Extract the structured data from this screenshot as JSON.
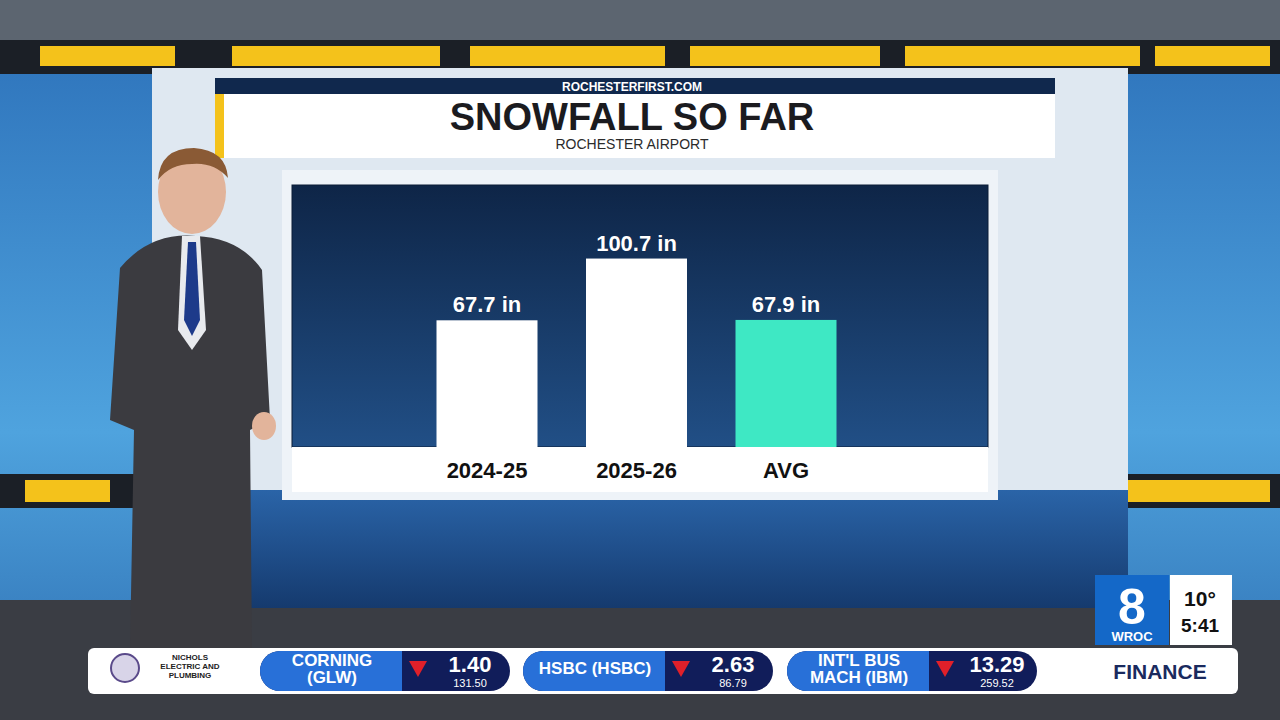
{
  "chart_data": {
    "type": "bar",
    "title": "SNOWFALL SO FAR",
    "subtitle": "ROCHESTER AIRPORT",
    "source": "ROCHESTERFIRST.COM",
    "categories": [
      "2024-25",
      "2025-26",
      "AVG"
    ],
    "values": [
      67.7,
      100.7,
      67.9
    ],
    "value_labels": [
      "67.7 in",
      "100.7 in",
      "67.9 in"
    ],
    "data_labels": true,
    "colors": [
      "#ffffff",
      "#ffffff",
      "#3ee8c4"
    ],
    "ylim": [
      0,
      140
    ],
    "tick_labels": false,
    "grid": false
  },
  "broadcast": {
    "channel": "8",
    "station": "WROC",
    "temperature": "10°",
    "time": "5:41",
    "sponsor": "NICHOLS ELECTRIC AND PLUMBING",
    "section": "FINANCE",
    "ticker": [
      {
        "name": "CORNING (GLW)",
        "change": "1.40",
        "price": "131.50"
      },
      {
        "name": "HSBC (HSBC)",
        "change": "2.63",
        "price": "86.79"
      },
      {
        "name": "INT'L BUS MACH (IBM)",
        "change": "13.29",
        "price": "259.52"
      }
    ]
  }
}
